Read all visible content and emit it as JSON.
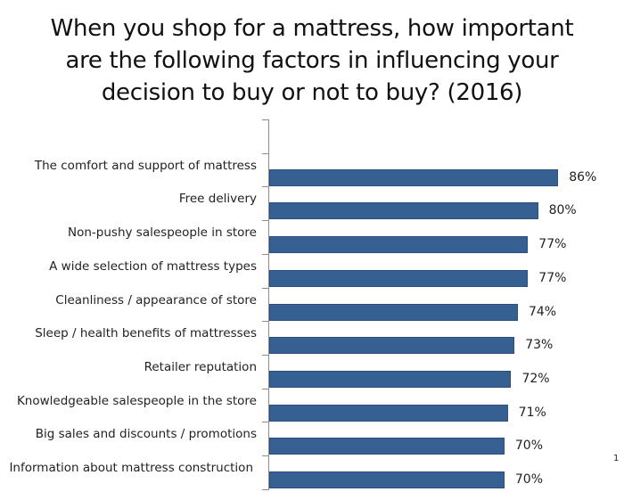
{
  "title_lines": [
    "When you shop for a mattress, how important",
    "are the following factors in influencing your",
    "decision to buy or not to buy? (2016)"
  ],
  "page_number": "1",
  "colors": {
    "bar": "#366092",
    "axis": "#8c8c8c"
  },
  "chart_data": {
    "type": "bar",
    "orientation": "horizontal",
    "title": "When you shop for a mattress, how important are the following factors in influencing your decision to buy or not to buy? (2016)",
    "xlabel": "",
    "ylabel": "",
    "grid": false,
    "legend": null,
    "categories": [
      "The comfort and support of mattress",
      "Free delivery",
      "Non-pushy salespeople in store",
      "A wide selection of mattress types",
      "Cleanliness / appearance of store",
      "Sleep / health benefits of mattresses",
      "Retailer reputation",
      "Knowledgeable salespeople in the store",
      "Big sales and discounts / promotions",
      "Information about mattress construction"
    ],
    "values": [
      86,
      80,
      77,
      77,
      74,
      73,
      72,
      71,
      70,
      70
    ],
    "value_labels": [
      "86%",
      "80%",
      "77%",
      "77%",
      "74%",
      "73%",
      "72%",
      "71%",
      "70%",
      "70%"
    ],
    "xlim": [
      0,
      100
    ]
  }
}
